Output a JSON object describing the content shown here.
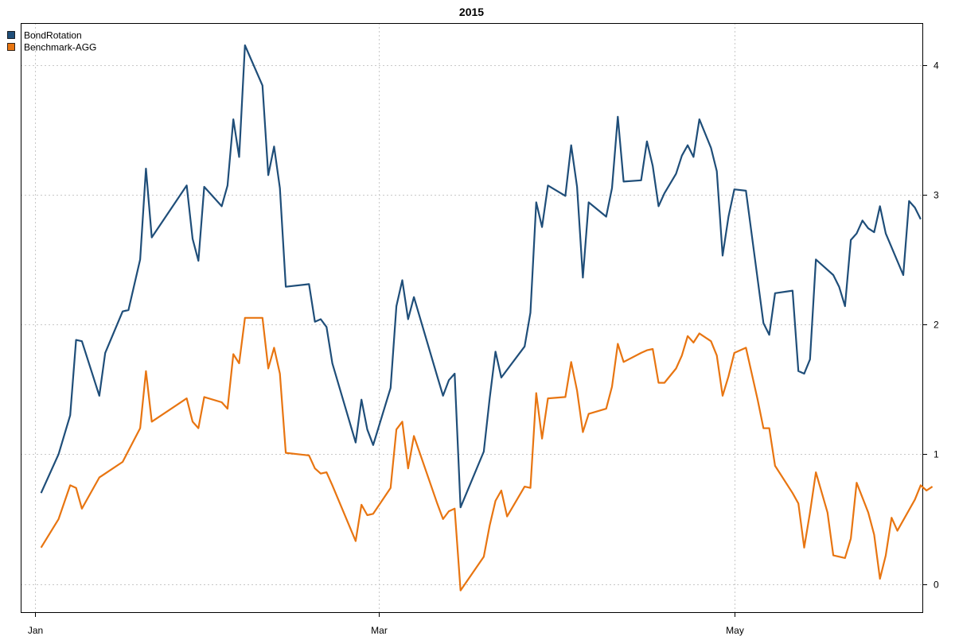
{
  "chart_data": {
    "type": "line",
    "title": "2015",
    "xlabel": "",
    "ylabel": "",
    "ylim": [
      -0.05,
      4.25
    ],
    "yticks": [
      0,
      1,
      2,
      3,
      4
    ],
    "x_axis": {
      "labels": [
        "Jan",
        "Mar",
        "May"
      ],
      "label_dates": [
        "2015-01-01",
        "2015-03-01",
        "2015-05-01"
      ],
      "range": [
        "2014-12-31",
        "2015-05-27"
      ]
    },
    "grid": true,
    "legend_position": "top-left",
    "series": [
      {
        "name": "BondRotation",
        "color": "#1f4e79",
        "points": [
          [
            "2015-01-02",
            0.7
          ],
          [
            "2015-01-05",
            1.0
          ],
          [
            "2015-01-07",
            1.3
          ],
          [
            "2015-01-08",
            1.88
          ],
          [
            "2015-01-09",
            1.87
          ],
          [
            "2015-01-12",
            1.45
          ],
          [
            "2015-01-13",
            1.78
          ],
          [
            "2015-01-16",
            2.1
          ],
          [
            "2015-01-17",
            2.11
          ],
          [
            "2015-01-19",
            2.5
          ],
          [
            "2015-01-20",
            3.2
          ],
          [
            "2015-01-21",
            2.67
          ],
          [
            "2015-01-27",
            3.07
          ],
          [
            "2015-01-28",
            2.66
          ],
          [
            "2015-01-29",
            2.49
          ],
          [
            "2015-01-30",
            3.06
          ],
          [
            "2015-02-02",
            2.91
          ],
          [
            "2015-02-03",
            3.07
          ],
          [
            "2015-02-04",
            3.58
          ],
          [
            "2015-02-05",
            3.29
          ],
          [
            "2015-02-06",
            4.15
          ],
          [
            "2015-02-09",
            3.84
          ],
          [
            "2015-02-10",
            3.15
          ],
          [
            "2015-02-11",
            3.37
          ],
          [
            "2015-02-12",
            3.05
          ],
          [
            "2015-02-13",
            2.29
          ],
          [
            "2015-02-17",
            2.31
          ],
          [
            "2015-02-18",
            2.02
          ],
          [
            "2015-02-19",
            2.04
          ],
          [
            "2015-02-20",
            1.98
          ],
          [
            "2015-02-21",
            1.7
          ],
          [
            "2015-02-25",
            1.09
          ],
          [
            "2015-02-26",
            1.42
          ],
          [
            "2015-02-27",
            1.19
          ],
          [
            "2015-02-28",
            1.07
          ],
          [
            "2015-03-03",
            1.51
          ],
          [
            "2015-03-04",
            2.14
          ],
          [
            "2015-03-05",
            2.34
          ],
          [
            "2015-03-06",
            2.04
          ],
          [
            "2015-03-07",
            2.21
          ],
          [
            "2015-03-11",
            1.6
          ],
          [
            "2015-03-12",
            1.45
          ],
          [
            "2015-03-13",
            1.57
          ],
          [
            "2015-03-14",
            1.62
          ],
          [
            "2015-03-15",
            0.59
          ],
          [
            "2015-03-19",
            1.02
          ],
          [
            "2015-03-20",
            1.43
          ],
          [
            "2015-03-21",
            1.79
          ],
          [
            "2015-03-22",
            1.59
          ],
          [
            "2015-03-26",
            1.83
          ],
          [
            "2015-03-27",
            2.09
          ],
          [
            "2015-03-28",
            2.94
          ],
          [
            "2015-03-29",
            2.75
          ],
          [
            "2015-03-30",
            3.07
          ],
          [
            "2015-04-02",
            2.99
          ],
          [
            "2015-04-03",
            3.38
          ],
          [
            "2015-04-04",
            3.06
          ],
          [
            "2015-04-05",
            2.36
          ],
          [
            "2015-04-06",
            2.94
          ],
          [
            "2015-04-09",
            2.83
          ],
          [
            "2015-04-10",
            3.05
          ],
          [
            "2015-04-11",
            3.6
          ],
          [
            "2015-04-12",
            3.1
          ],
          [
            "2015-04-15",
            3.11
          ],
          [
            "2015-04-16",
            3.41
          ],
          [
            "2015-04-17",
            3.22
          ],
          [
            "2015-04-18",
            2.91
          ],
          [
            "2015-04-19",
            3.01
          ],
          [
            "2015-04-21",
            3.16
          ],
          [
            "2015-04-22",
            3.3
          ],
          [
            "2015-04-23",
            3.38
          ],
          [
            "2015-04-24",
            3.29
          ],
          [
            "2015-04-25",
            3.58
          ],
          [
            "2015-04-27",
            3.36
          ],
          [
            "2015-04-28",
            3.18
          ],
          [
            "2015-04-29",
            2.53
          ],
          [
            "2015-04-30",
            2.83
          ],
          [
            "2015-05-01",
            3.04
          ],
          [
            "2015-05-03",
            3.03
          ],
          [
            "2015-05-06",
            2.01
          ],
          [
            "2015-05-07",
            1.92
          ],
          [
            "2015-05-08",
            2.24
          ],
          [
            "2015-05-11",
            2.26
          ],
          [
            "2015-05-12",
            1.64
          ],
          [
            "2015-05-13",
            1.62
          ],
          [
            "2015-05-14",
            1.73
          ],
          [
            "2015-05-15",
            2.5
          ],
          [
            "2015-05-17",
            2.42
          ],
          [
            "2015-05-18",
            2.38
          ],
          [
            "2015-05-19",
            2.29
          ],
          [
            "2015-05-20",
            2.14
          ],
          [
            "2015-05-21",
            2.65
          ],
          [
            "2015-05-22",
            2.7
          ],
          [
            "2015-05-23",
            2.8
          ],
          [
            "2015-05-24",
            2.74
          ],
          [
            "2015-05-25",
            2.71
          ],
          [
            "2015-05-26",
            2.91
          ],
          [
            "2015-05-27",
            2.7
          ],
          [
            "2015-05-30",
            2.38
          ],
          [
            "2015-05-31",
            2.95
          ],
          [
            "2015-06-01",
            2.9
          ],
          [
            "2015-06-02",
            2.81
          ]
        ]
      },
      {
        "name": "Benchmark-AGG",
        "color": "#e87511",
        "points": [
          [
            "2015-01-02",
            0.28
          ],
          [
            "2015-01-05",
            0.5
          ],
          [
            "2015-01-07",
            0.76
          ],
          [
            "2015-01-08",
            0.74
          ],
          [
            "2015-01-09",
            0.58
          ],
          [
            "2015-01-12",
            0.82
          ],
          [
            "2015-01-16",
            0.94
          ],
          [
            "2015-01-19",
            1.2
          ],
          [
            "2015-01-20",
            1.64
          ],
          [
            "2015-01-21",
            1.25
          ],
          [
            "2015-01-27",
            1.43
          ],
          [
            "2015-01-28",
            1.25
          ],
          [
            "2015-01-29",
            1.2
          ],
          [
            "2015-01-30",
            1.44
          ],
          [
            "2015-02-02",
            1.4
          ],
          [
            "2015-02-03",
            1.35
          ],
          [
            "2015-02-04",
            1.77
          ],
          [
            "2015-02-05",
            1.7
          ],
          [
            "2015-02-06",
            2.05
          ],
          [
            "2015-02-09",
            2.05
          ],
          [
            "2015-02-10",
            1.66
          ],
          [
            "2015-02-11",
            1.82
          ],
          [
            "2015-02-12",
            1.62
          ],
          [
            "2015-02-13",
            1.01
          ],
          [
            "2015-02-17",
            0.99
          ],
          [
            "2015-02-18",
            0.89
          ],
          [
            "2015-02-19",
            0.85
          ],
          [
            "2015-02-20",
            0.86
          ],
          [
            "2015-02-21",
            0.76
          ],
          [
            "2015-02-25",
            0.33
          ],
          [
            "2015-02-26",
            0.61
          ],
          [
            "2015-02-27",
            0.53
          ],
          [
            "2015-02-28",
            0.54
          ],
          [
            "2015-03-03",
            0.74
          ],
          [
            "2015-03-04",
            1.19
          ],
          [
            "2015-03-05",
            1.25
          ],
          [
            "2015-03-06",
            0.89
          ],
          [
            "2015-03-07",
            1.14
          ],
          [
            "2015-03-11",
            0.62
          ],
          [
            "2015-03-12",
            0.5
          ],
          [
            "2015-03-13",
            0.56
          ],
          [
            "2015-03-14",
            0.58
          ],
          [
            "2015-03-15",
            -0.05
          ],
          [
            "2015-03-19",
            0.21
          ],
          [
            "2015-03-20",
            0.45
          ],
          [
            "2015-03-21",
            0.64
          ],
          [
            "2015-03-22",
            0.72
          ],
          [
            "2015-03-23",
            0.52
          ],
          [
            "2015-03-26",
            0.75
          ],
          [
            "2015-03-27",
            0.74
          ],
          [
            "2015-03-28",
            1.47
          ],
          [
            "2015-03-29",
            1.12
          ],
          [
            "2015-03-30",
            1.43
          ],
          [
            "2015-04-02",
            1.44
          ],
          [
            "2015-04-03",
            1.71
          ],
          [
            "2015-04-04",
            1.49
          ],
          [
            "2015-04-05",
            1.17
          ],
          [
            "2015-04-06",
            1.31
          ],
          [
            "2015-04-09",
            1.35
          ],
          [
            "2015-04-10",
            1.52
          ],
          [
            "2015-04-11",
            1.85
          ],
          [
            "2015-04-12",
            1.71
          ],
          [
            "2015-04-15",
            1.78
          ],
          [
            "2015-04-16",
            1.8
          ],
          [
            "2015-04-17",
            1.81
          ],
          [
            "2015-04-18",
            1.55
          ],
          [
            "2015-04-19",
            1.55
          ],
          [
            "2015-04-21",
            1.66
          ],
          [
            "2015-04-22",
            1.76
          ],
          [
            "2015-04-23",
            1.91
          ],
          [
            "2015-04-24",
            1.86
          ],
          [
            "2015-04-25",
            1.93
          ],
          [
            "2015-04-27",
            1.87
          ],
          [
            "2015-04-28",
            1.76
          ],
          [
            "2015-04-29",
            1.45
          ],
          [
            "2015-04-30",
            1.6
          ],
          [
            "2015-05-01",
            1.78
          ],
          [
            "2015-05-03",
            1.82
          ],
          [
            "2015-05-05",
            1.42
          ],
          [
            "2015-05-06",
            1.2
          ],
          [
            "2015-05-07",
            1.2
          ],
          [
            "2015-05-08",
            0.91
          ],
          [
            "2015-05-11",
            0.7
          ],
          [
            "2015-05-12",
            0.62
          ],
          [
            "2015-05-13",
            0.28
          ],
          [
            "2015-05-14",
            0.55
          ],
          [
            "2015-05-15",
            0.86
          ],
          [
            "2015-05-17",
            0.55
          ],
          [
            "2015-05-18",
            0.22
          ],
          [
            "2015-05-20",
            0.2
          ],
          [
            "2015-05-21",
            0.35
          ],
          [
            "2015-05-22",
            0.78
          ],
          [
            "2015-05-24",
            0.55
          ],
          [
            "2015-05-25",
            0.38
          ],
          [
            "2015-05-26",
            0.04
          ],
          [
            "2015-05-27",
            0.22
          ],
          [
            "2015-05-28",
            0.51
          ],
          [
            "2015-05-29",
            0.41
          ],
          [
            "2015-06-01",
            0.65
          ],
          [
            "2015-06-02",
            0.76
          ],
          [
            "2015-06-03",
            0.72
          ],
          [
            "2015-06-04",
            0.75
          ]
        ]
      }
    ]
  }
}
